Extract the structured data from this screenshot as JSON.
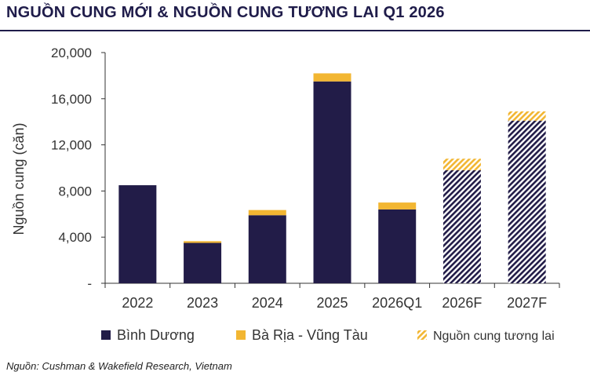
{
  "header": {
    "title": "NGUỒN CUNG MỚI & NGUỒN CUNG TƯƠNG LAI Q1 2026"
  },
  "footer": {
    "source": "Nguồn: Cushman & Wakefield Research, Vietnam"
  },
  "colors": {
    "binh_duong": "#221c48",
    "ba_ria": "#f2b632",
    "text": "#333333",
    "axis": "#333333"
  },
  "chart_data": {
    "type": "bar",
    "stacked": true,
    "categories": [
      "2022",
      "2023",
      "2024",
      "2025",
      "2026Q1",
      "2026F",
      "2027F"
    ],
    "ylabel": "Nguồn cung (căn)",
    "xlabel": "",
    "ylim": [
      0,
      20000
    ],
    "yticks": [
      0,
      4000,
      8000,
      12000,
      16000,
      20000
    ],
    "ytick_labels": [
      "-",
      "4,000",
      "8,000",
      "12,000",
      "16,000",
      "20,000"
    ],
    "grid": false,
    "legend_position": "bottom",
    "series": [
      {
        "name": "Bình Dương",
        "color": "#221c48",
        "values": [
          8500,
          3500,
          5900,
          17500,
          6400,
          9800,
          14100
        ]
      },
      {
        "name": "Bà Rịa - Vũng Tàu",
        "color": "#f2b632",
        "values": [
          0,
          150,
          450,
          700,
          600,
          1000,
          800
        ]
      }
    ],
    "forecast_categories": [
      "2026F",
      "2027F"
    ],
    "forecast_legend": "Nguồn cung tương lai"
  }
}
